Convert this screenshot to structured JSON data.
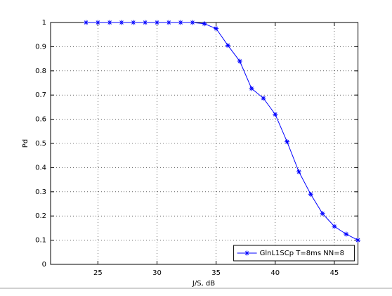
{
  "chart_data": {
    "type": "line",
    "x_label": "J/S, dB",
    "y_label": "Pd",
    "x": [
      24,
      25,
      26,
      27,
      28,
      29,
      30,
      31,
      32,
      33,
      34,
      35,
      36,
      37,
      38,
      39,
      40,
      41,
      42,
      43,
      44,
      45,
      46,
      47
    ],
    "series": [
      {
        "name": "GlnL1SCp T=8ms NN=8",
        "color": "#0000ff",
        "values": [
          1,
          1,
          1,
          1,
          1,
          1,
          1,
          1,
          1,
          1,
          0.995,
          0.975,
          0.905,
          0.84,
          0.727,
          0.687,
          0.62,
          0.507,
          0.383,
          0.29,
          0.21,
          0.157,
          0.125,
          0.1
        ]
      }
    ],
    "xlim": [
      21,
      47
    ],
    "ylim": [
      0,
      1
    ],
    "xticks": [
      25,
      30,
      35,
      40,
      45
    ],
    "yticks": [
      0,
      0.1,
      0.2,
      0.3,
      0.4,
      0.5,
      0.6,
      0.7,
      0.8,
      0.9,
      1
    ],
    "grid": true,
    "legend": "lower right",
    "marker": "*"
  }
}
